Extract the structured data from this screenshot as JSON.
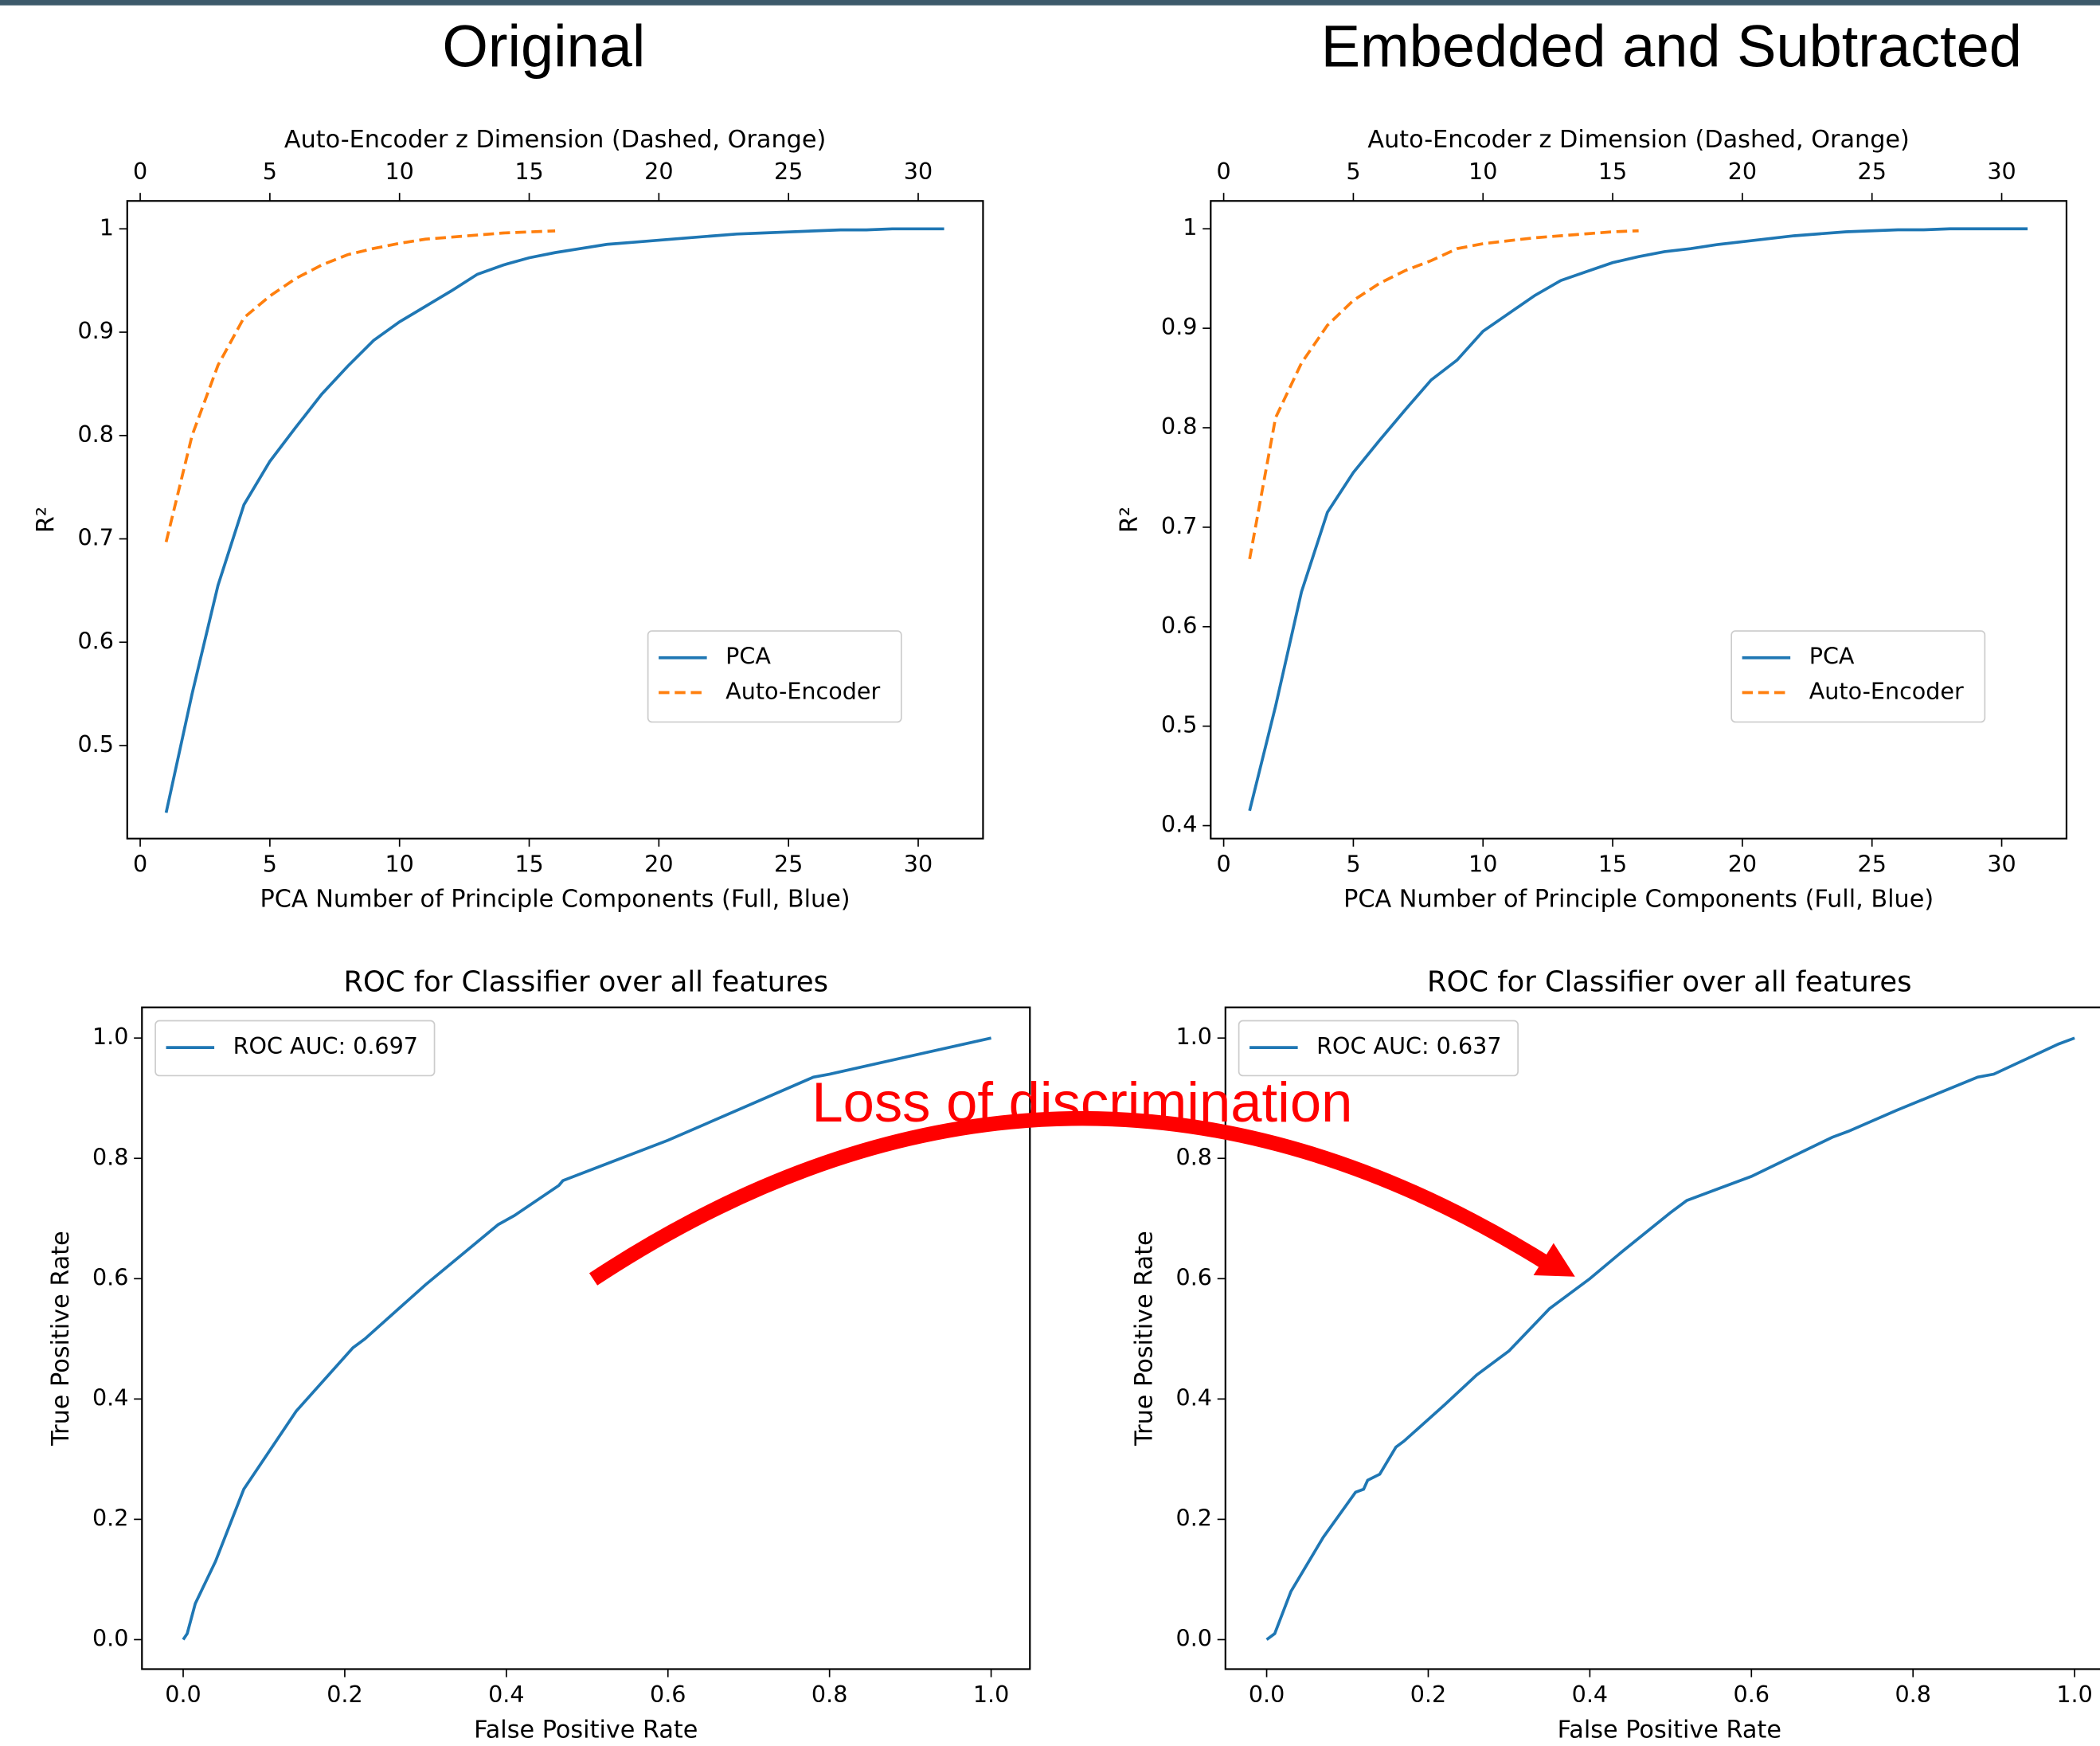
{
  "headings": [
    "Original",
    "Embedded and Subtracted"
  ],
  "annotation": "Loss of discrimination",
  "chart_data": [
    {
      "type": "line",
      "xlabel": "PCA Number of Principle Components (Full, Blue)",
      "x2label": "Auto-Encoder z Dimension (Dashed, Orange)",
      "ylabel": "R²",
      "xlim": [
        -0.5,
        32.5
      ],
      "xticks": [
        0,
        5,
        10,
        15,
        20,
        25,
        30
      ],
      "x2lim": [
        -0.5,
        32.5
      ],
      "x2ticks": [
        0,
        5,
        10,
        15,
        20,
        25,
        30
      ],
      "ylim": [
        0.41,
        1.027
      ],
      "yticks": [
        0.5,
        0.6,
        0.7,
        0.8,
        0.9,
        1.0
      ],
      "legend": "lower right",
      "series": [
        {
          "name": "PCA",
          "color": "#1f77b4",
          "dashed": false,
          "x": [
            1,
            2,
            3,
            4,
            5,
            6,
            7,
            8,
            9,
            10,
            11,
            12,
            13,
            14,
            15,
            16,
            17,
            18,
            19,
            20,
            21,
            22,
            23,
            24,
            25,
            26,
            27,
            28,
            29,
            30,
            31
          ],
          "values": [
            0.435,
            0.55,
            0.655,
            0.733,
            0.775,
            0.808,
            0.84,
            0.867,
            0.892,
            0.91,
            0.925,
            0.94,
            0.956,
            0.965,
            0.972,
            0.977,
            0.981,
            0.985,
            0.987,
            0.989,
            0.991,
            0.993,
            0.995,
            0.996,
            0.997,
            0.998,
            0.999,
            0.999,
            1.0,
            1.0,
            1.0
          ]
        },
        {
          "name": "Auto-Encoder",
          "color": "#ff7f0e",
          "dashed": true,
          "axis": "x2",
          "x": [
            1,
            2,
            3,
            4,
            5,
            6,
            7,
            8,
            9,
            10,
            11,
            12,
            13,
            14,
            15,
            16
          ],
          "values": [
            0.697,
            0.8,
            0.868,
            0.914,
            0.935,
            0.952,
            0.965,
            0.975,
            0.981,
            0.986,
            0.99,
            0.992,
            0.994,
            0.996,
            0.997,
            0.998
          ]
        }
      ]
    },
    {
      "type": "line",
      "xlabel": "PCA Number of Principle Components (Full, Blue)",
      "x2label": "Auto-Encoder z Dimension (Dashed, Orange)",
      "ylabel": "R²",
      "xlim": [
        -0.5,
        32.5
      ],
      "xticks": [
        0,
        5,
        10,
        15,
        20,
        25,
        30
      ],
      "x2lim": [
        -0.5,
        32.5
      ],
      "x2ticks": [
        0,
        5,
        10,
        15,
        20,
        25,
        30
      ],
      "ylim": [
        0.387,
        1.028
      ],
      "yticks": [
        0.4,
        0.5,
        0.6,
        0.7,
        0.8,
        0.9,
        1.0
      ],
      "legend": "lower right",
      "series": [
        {
          "name": "PCA",
          "color": "#1f77b4",
          "dashed": false,
          "x": [
            1,
            2,
            3,
            4,
            5,
            6,
            7,
            8,
            9,
            10,
            11,
            12,
            13,
            14,
            15,
            16,
            17,
            18,
            19,
            20,
            21,
            22,
            23,
            24,
            25,
            26,
            27,
            28,
            29,
            30,
            31
          ],
          "values": [
            0.415,
            0.52,
            0.635,
            0.715,
            0.755,
            0.787,
            0.818,
            0.848,
            0.868,
            0.897,
            0.915,
            0.933,
            0.948,
            0.957,
            0.966,
            0.972,
            0.977,
            0.98,
            0.984,
            0.987,
            0.99,
            0.993,
            0.995,
            0.997,
            0.998,
            0.999,
            0.999,
            1.0,
            1.0,
            1.0,
            1.0
          ]
        },
        {
          "name": "Auto-Encoder",
          "color": "#ff7f0e",
          "dashed": true,
          "axis": "x2",
          "x": [
            1,
            2,
            3,
            4,
            5,
            6,
            7,
            8,
            9,
            10,
            11,
            12,
            13,
            14,
            15,
            16
          ],
          "values": [
            0.668,
            0.81,
            0.865,
            0.903,
            0.928,
            0.945,
            0.958,
            0.968,
            0.98,
            0.985,
            0.988,
            0.991,
            0.993,
            0.995,
            0.997,
            0.998
          ]
        }
      ]
    },
    {
      "type": "line",
      "title": "ROC for Classifier over all features",
      "xlabel": "False Positive Rate",
      "ylabel": "True Positive Rate",
      "xlim": [
        -0.051,
        1.048
      ],
      "xticks": [
        {
          "value": 0,
          "label": "0.0"
        },
        0.2,
        0.4,
        0.6,
        0.8,
        {
          "value": 1,
          "label": "1.0"
        }
      ],
      "ylim": [
        -0.049,
        1.051
      ],
      "yticks": [
        {
          "value": 0,
          "label": "0.0"
        },
        0.2,
        0.4,
        0.6,
        0.8,
        {
          "value": 1,
          "label": "1.0"
        }
      ],
      "legend": "upper left",
      "series": [
        {
          "name": "ROC AUC: 0.697",
          "color": "#1f77b4",
          "dashed": false,
          "x": [
            0,
            0.005,
            0.015,
            0.04,
            0.075,
            0.14,
            0.21,
            0.225,
            0.3,
            0.39,
            0.41,
            0.465,
            0.47,
            0.6,
            0.78,
            0.8,
            1
          ],
          "values": [
            0,
            0.01,
            0.06,
            0.13,
            0.25,
            0.38,
            0.485,
            0.5,
            0.59,
            0.69,
            0.705,
            0.755,
            0.763,
            0.83,
            0.935,
            0.94,
            1
          ]
        }
      ]
    },
    {
      "type": "line",
      "title": "ROC for Classifier over all features",
      "xlabel": "False Positive Rate",
      "ylabel": "True Positive Rate",
      "xlim": [
        -0.051,
        1.048
      ],
      "xticks": [
        {
          "value": 0,
          "label": "0.0"
        },
        0.2,
        0.4,
        0.6,
        0.8,
        {
          "value": 1,
          "label": "1.0"
        }
      ],
      "ylim": [
        -0.049,
        1.051
      ],
      "yticks": [
        {
          "value": 0,
          "label": "0.0"
        },
        0.2,
        0.4,
        0.6,
        0.8,
        {
          "value": 1,
          "label": "1.0"
        }
      ],
      "legend": "upper left",
      "series": [
        {
          "name": "ROC AUC: 0.637",
          "color": "#1f77b4",
          "dashed": false,
          "x": [
            0,
            0.01,
            0.03,
            0.07,
            0.11,
            0.12,
            0.125,
            0.14,
            0.16,
            0.17,
            0.22,
            0.26,
            0.3,
            0.35,
            0.4,
            0.44,
            0.5,
            0.52,
            0.6,
            0.7,
            0.72,
            0.78,
            0.88,
            0.9,
            0.98,
            1
          ],
          "values": [
            0,
            0.01,
            0.08,
            0.17,
            0.245,
            0.25,
            0.265,
            0.275,
            0.32,
            0.33,
            0.39,
            0.44,
            0.48,
            0.55,
            0.6,
            0.645,
            0.71,
            0.73,
            0.77,
            0.835,
            0.845,
            0.88,
            0.935,
            0.94,
            0.99,
            1
          ]
        }
      ]
    }
  ]
}
